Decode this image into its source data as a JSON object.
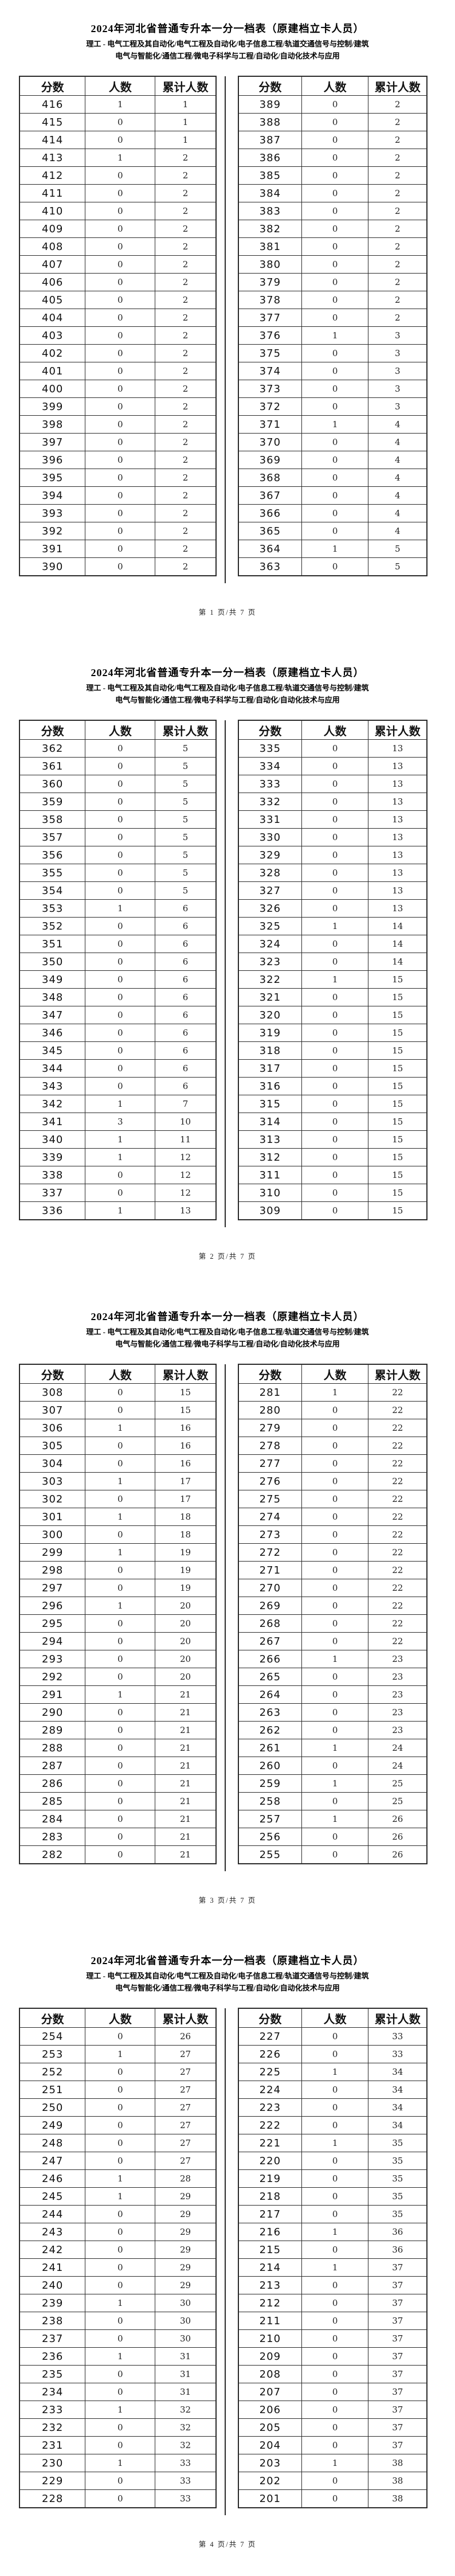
{
  "document": {
    "title": "2024年河北省普通专升本一分一档表（原建档立卡人员）",
    "subtitle_line1": "理工 - 电气工程及其自动化/电气工程及自动化/电子信息工程/轨道交通信号与控制/建筑",
    "subtitle_line2": "电气与智能化/通信工程/微电子科学与工程/自动化/自动化技术与应用",
    "columns": [
      "分数",
      "人数",
      "累计人数"
    ]
  },
  "pages": [
    {
      "footer": "第 1 页/共 7 页",
      "left_table": {
        "rows": [
          [
            416,
            1,
            1
          ],
          [
            415,
            0,
            1
          ],
          [
            414,
            0,
            1
          ],
          [
            413,
            1,
            2
          ],
          [
            412,
            0,
            2
          ],
          [
            411,
            0,
            2
          ],
          [
            410,
            0,
            2
          ],
          [
            409,
            0,
            2
          ],
          [
            408,
            0,
            2
          ],
          [
            407,
            0,
            2
          ],
          [
            406,
            0,
            2
          ],
          [
            405,
            0,
            2
          ],
          [
            404,
            0,
            2
          ],
          [
            403,
            0,
            2
          ],
          [
            402,
            0,
            2
          ],
          [
            401,
            0,
            2
          ],
          [
            400,
            0,
            2
          ],
          [
            399,
            0,
            2
          ],
          [
            398,
            0,
            2
          ],
          [
            397,
            0,
            2
          ],
          [
            396,
            0,
            2
          ],
          [
            395,
            0,
            2
          ],
          [
            394,
            0,
            2
          ],
          [
            393,
            0,
            2
          ],
          [
            392,
            0,
            2
          ],
          [
            391,
            0,
            2
          ],
          [
            390,
            0,
            2
          ]
        ]
      },
      "right_table": {
        "rows": [
          [
            389,
            0,
            2
          ],
          [
            388,
            0,
            2
          ],
          [
            387,
            0,
            2
          ],
          [
            386,
            0,
            2
          ],
          [
            385,
            0,
            2
          ],
          [
            384,
            0,
            2
          ],
          [
            383,
            0,
            2
          ],
          [
            382,
            0,
            2
          ],
          [
            381,
            0,
            2
          ],
          [
            380,
            0,
            2
          ],
          [
            379,
            0,
            2
          ],
          [
            378,
            0,
            2
          ],
          [
            377,
            0,
            2
          ],
          [
            376,
            1,
            3
          ],
          [
            375,
            0,
            3
          ],
          [
            374,
            0,
            3
          ],
          [
            373,
            0,
            3
          ],
          [
            372,
            0,
            3
          ],
          [
            371,
            1,
            4
          ],
          [
            370,
            0,
            4
          ],
          [
            369,
            0,
            4
          ],
          [
            368,
            0,
            4
          ],
          [
            367,
            0,
            4
          ],
          [
            366,
            0,
            4
          ],
          [
            365,
            0,
            4
          ],
          [
            364,
            1,
            5
          ],
          [
            363,
            0,
            5
          ]
        ]
      }
    },
    {
      "footer": "第 2 页/共 7 页",
      "left_table": {
        "rows": [
          [
            362,
            0,
            5
          ],
          [
            361,
            0,
            5
          ],
          [
            360,
            0,
            5
          ],
          [
            359,
            0,
            5
          ],
          [
            358,
            0,
            5
          ],
          [
            357,
            0,
            5
          ],
          [
            356,
            0,
            5
          ],
          [
            355,
            0,
            5
          ],
          [
            354,
            0,
            5
          ],
          [
            353,
            1,
            6
          ],
          [
            352,
            0,
            6
          ],
          [
            351,
            0,
            6
          ],
          [
            350,
            0,
            6
          ],
          [
            349,
            0,
            6
          ],
          [
            348,
            0,
            6
          ],
          [
            347,
            0,
            6
          ],
          [
            346,
            0,
            6
          ],
          [
            345,
            0,
            6
          ],
          [
            344,
            0,
            6
          ],
          [
            343,
            0,
            6
          ],
          [
            342,
            1,
            7
          ],
          [
            341,
            3,
            10
          ],
          [
            340,
            1,
            11
          ],
          [
            339,
            1,
            12
          ],
          [
            338,
            0,
            12
          ],
          [
            337,
            0,
            12
          ],
          [
            336,
            1,
            13
          ]
        ]
      },
      "right_table": {
        "rows": [
          [
            335,
            0,
            13
          ],
          [
            334,
            0,
            13
          ],
          [
            333,
            0,
            13
          ],
          [
            332,
            0,
            13
          ],
          [
            331,
            0,
            13
          ],
          [
            330,
            0,
            13
          ],
          [
            329,
            0,
            13
          ],
          [
            328,
            0,
            13
          ],
          [
            327,
            0,
            13
          ],
          [
            326,
            0,
            13
          ],
          [
            325,
            1,
            14
          ],
          [
            324,
            0,
            14
          ],
          [
            323,
            0,
            14
          ],
          [
            322,
            1,
            15
          ],
          [
            321,
            0,
            15
          ],
          [
            320,
            0,
            15
          ],
          [
            319,
            0,
            15
          ],
          [
            318,
            0,
            15
          ],
          [
            317,
            0,
            15
          ],
          [
            316,
            0,
            15
          ],
          [
            315,
            0,
            15
          ],
          [
            314,
            0,
            15
          ],
          [
            313,
            0,
            15
          ],
          [
            312,
            0,
            15
          ],
          [
            311,
            0,
            15
          ],
          [
            310,
            0,
            15
          ],
          [
            309,
            0,
            15
          ]
        ]
      }
    },
    {
      "footer": "第 3 页/共 7 页",
      "left_table": {
        "rows": [
          [
            308,
            0,
            15
          ],
          [
            307,
            0,
            15
          ],
          [
            306,
            1,
            16
          ],
          [
            305,
            0,
            16
          ],
          [
            304,
            0,
            16
          ],
          [
            303,
            1,
            17
          ],
          [
            302,
            0,
            17
          ],
          [
            301,
            1,
            18
          ],
          [
            300,
            0,
            18
          ],
          [
            299,
            1,
            19
          ],
          [
            298,
            0,
            19
          ],
          [
            297,
            0,
            19
          ],
          [
            296,
            1,
            20
          ],
          [
            295,
            0,
            20
          ],
          [
            294,
            0,
            20
          ],
          [
            293,
            0,
            20
          ],
          [
            292,
            0,
            20
          ],
          [
            291,
            1,
            21
          ],
          [
            290,
            0,
            21
          ],
          [
            289,
            0,
            21
          ],
          [
            288,
            0,
            21
          ],
          [
            287,
            0,
            21
          ],
          [
            286,
            0,
            21
          ],
          [
            285,
            0,
            21
          ],
          [
            284,
            0,
            21
          ],
          [
            283,
            0,
            21
          ],
          [
            282,
            0,
            21
          ]
        ]
      },
      "right_table": {
        "rows": [
          [
            281,
            1,
            22
          ],
          [
            280,
            0,
            22
          ],
          [
            279,
            0,
            22
          ],
          [
            278,
            0,
            22
          ],
          [
            277,
            0,
            22
          ],
          [
            276,
            0,
            22
          ],
          [
            275,
            0,
            22
          ],
          [
            274,
            0,
            22
          ],
          [
            273,
            0,
            22
          ],
          [
            272,
            0,
            22
          ],
          [
            271,
            0,
            22
          ],
          [
            270,
            0,
            22
          ],
          [
            269,
            0,
            22
          ],
          [
            268,
            0,
            22
          ],
          [
            267,
            0,
            22
          ],
          [
            266,
            1,
            23
          ],
          [
            265,
            0,
            23
          ],
          [
            264,
            0,
            23
          ],
          [
            263,
            0,
            23
          ],
          [
            262,
            0,
            23
          ],
          [
            261,
            1,
            24
          ],
          [
            260,
            0,
            24
          ],
          [
            259,
            1,
            25
          ],
          [
            258,
            0,
            25
          ],
          [
            257,
            1,
            26
          ],
          [
            256,
            0,
            26
          ],
          [
            255,
            0,
            26
          ]
        ]
      }
    },
    {
      "footer": "第 4 页/共 7 页",
      "left_table": {
        "rows": [
          [
            254,
            0,
            26
          ],
          [
            253,
            1,
            27
          ],
          [
            252,
            0,
            27
          ],
          [
            251,
            0,
            27
          ],
          [
            250,
            0,
            27
          ],
          [
            249,
            0,
            27
          ],
          [
            248,
            0,
            27
          ],
          [
            247,
            0,
            27
          ],
          [
            246,
            1,
            28
          ],
          [
            245,
            1,
            29
          ],
          [
            244,
            0,
            29
          ],
          [
            243,
            0,
            29
          ],
          [
            242,
            0,
            29
          ],
          [
            241,
            0,
            29
          ],
          [
            240,
            0,
            29
          ],
          [
            239,
            1,
            30
          ],
          [
            238,
            0,
            30
          ],
          [
            237,
            0,
            30
          ],
          [
            236,
            1,
            31
          ],
          [
            235,
            0,
            31
          ],
          [
            234,
            0,
            31
          ],
          [
            233,
            1,
            32
          ],
          [
            232,
            0,
            32
          ],
          [
            231,
            0,
            32
          ],
          [
            230,
            1,
            33
          ],
          [
            229,
            0,
            33
          ],
          [
            228,
            0,
            33
          ]
        ]
      },
      "right_table": {
        "rows": [
          [
            227,
            0,
            33
          ],
          [
            226,
            0,
            33
          ],
          [
            225,
            1,
            34
          ],
          [
            224,
            0,
            34
          ],
          [
            223,
            0,
            34
          ],
          [
            222,
            0,
            34
          ],
          [
            221,
            1,
            35
          ],
          [
            220,
            0,
            35
          ],
          [
            219,
            0,
            35
          ],
          [
            218,
            0,
            35
          ],
          [
            217,
            0,
            35
          ],
          [
            216,
            1,
            36
          ],
          [
            215,
            0,
            36
          ],
          [
            214,
            1,
            37
          ],
          [
            213,
            0,
            37
          ],
          [
            212,
            0,
            37
          ],
          [
            211,
            0,
            37
          ],
          [
            210,
            0,
            37
          ],
          [
            209,
            0,
            37
          ],
          [
            208,
            0,
            37
          ],
          [
            207,
            0,
            37
          ],
          [
            206,
            0,
            37
          ],
          [
            205,
            0,
            37
          ],
          [
            204,
            0,
            37
          ],
          [
            203,
            1,
            38
          ],
          [
            202,
            0,
            38
          ],
          [
            201,
            0,
            38
          ]
        ]
      }
    }
  ]
}
